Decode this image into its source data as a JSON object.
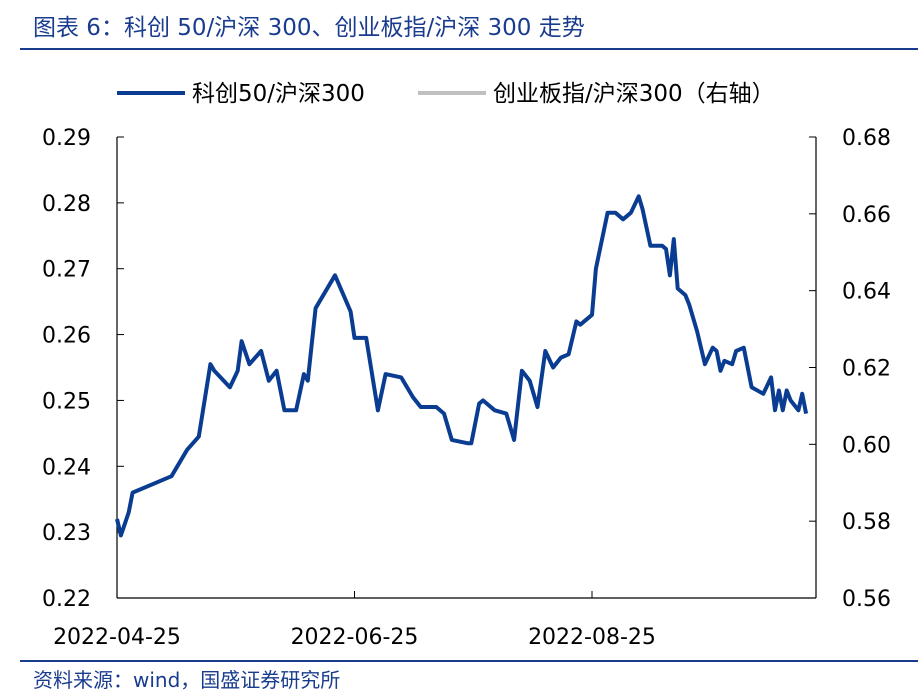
{
  "header": {
    "title": "图表 6：科创 50/沪深 300、创业板指/沪深 300 走势"
  },
  "footer": {
    "source": "资料来源：wind，国盛证券研究所"
  },
  "chart_data": {
    "type": "line",
    "title": "图表 6：科创 50/沪深 300、创业板指/沪深 300 走势",
    "legend_position": "top",
    "grid": false,
    "x_tick_labels": [
      "2022-04-25",
      "2022-06-25",
      "2022-08-25"
    ],
    "x_tick_dates": [
      "2022-04-25",
      "2022-06-25",
      "2022-08-25"
    ],
    "x_range": [
      "2022-04-25",
      "2022-10-21"
    ],
    "y_left": {
      "min": 0.22,
      "max": 0.29,
      "ticks": [
        0.22,
        0.23,
        0.24,
        0.25,
        0.26,
        0.27,
        0.28,
        0.29
      ],
      "labels": [
        "0.22",
        "0.23",
        "0.24",
        "0.25",
        "0.26",
        "0.27",
        "0.28",
        "0.29"
      ]
    },
    "y_right": {
      "min": 0.56,
      "max": 0.68,
      "ticks": [
        0.56,
        0.58,
        0.6,
        0.62,
        0.64,
        0.66,
        0.68
      ],
      "labels": [
        "0.56",
        "0.58",
        "0.60",
        "0.62",
        "0.64",
        "0.66",
        "0.68"
      ]
    },
    "series": [
      {
        "name": "科创50/沪深300",
        "axis": "left",
        "color": "#0a3d91",
        "points": [
          [
            "2022-04-25",
            0.232
          ],
          [
            "2022-04-26",
            0.2295
          ],
          [
            "2022-04-28",
            0.233
          ],
          [
            "2022-04-29",
            0.236
          ],
          [
            "2022-05-05",
            0.2375
          ],
          [
            "2022-05-09",
            0.2385
          ],
          [
            "2022-05-13",
            0.2425
          ],
          [
            "2022-05-16",
            0.2445
          ],
          [
            "2022-05-19",
            0.2555
          ],
          [
            "2022-05-20",
            0.2545
          ],
          [
            "2022-05-24",
            0.252
          ],
          [
            "2022-05-26",
            0.2545
          ],
          [
            "2022-05-27",
            0.259
          ],
          [
            "2022-05-29",
            0.2555
          ],
          [
            "2022-06-01",
            0.2575
          ],
          [
            "2022-06-03",
            0.253
          ],
          [
            "2022-06-05",
            0.2545
          ],
          [
            "2022-06-07",
            0.2485
          ],
          [
            "2022-06-10",
            0.2485
          ],
          [
            "2022-06-12",
            0.254
          ],
          [
            "2022-06-13",
            0.253
          ],
          [
            "2022-06-15",
            0.264
          ],
          [
            "2022-06-20",
            0.269
          ],
          [
            "2022-06-24",
            0.2635
          ],
          [
            "2022-06-25",
            0.2595
          ],
          [
            "2022-06-28",
            0.2595
          ],
          [
            "2022-07-01",
            0.2485
          ],
          [
            "2022-07-03",
            0.254
          ],
          [
            "2022-07-07",
            0.2535
          ],
          [
            "2022-07-10",
            0.2505
          ],
          [
            "2022-07-12",
            0.249
          ],
          [
            "2022-07-16",
            0.249
          ],
          [
            "2022-07-18",
            0.248
          ],
          [
            "2022-07-20",
            0.244
          ],
          [
            "2022-07-24",
            0.2435
          ],
          [
            "2022-07-25",
            0.2435
          ],
          [
            "2022-07-27",
            0.2495
          ],
          [
            "2022-07-28",
            0.25
          ],
          [
            "2022-07-31",
            0.2485
          ],
          [
            "2022-08-03",
            0.248
          ],
          [
            "2022-08-05",
            0.244
          ],
          [
            "2022-08-07",
            0.2545
          ],
          [
            "2022-08-09",
            0.253
          ],
          [
            "2022-08-11",
            0.249
          ],
          [
            "2022-08-13",
            0.2575
          ],
          [
            "2022-08-15",
            0.255
          ],
          [
            "2022-08-17",
            0.2565
          ],
          [
            "2022-08-19",
            0.257
          ],
          [
            "2022-08-21",
            0.262
          ],
          [
            "2022-08-22",
            0.2615
          ],
          [
            "2022-08-25",
            0.263
          ],
          [
            "2022-08-26",
            0.27
          ],
          [
            "2022-08-29",
            0.2785
          ],
          [
            "2022-08-31",
            0.2785
          ],
          [
            "2022-09-02",
            0.2775
          ],
          [
            "2022-09-04",
            0.2785
          ],
          [
            "2022-09-06",
            0.281
          ],
          [
            "2022-09-07",
            0.279
          ],
          [
            "2022-09-09",
            0.2735
          ],
          [
            "2022-09-12",
            0.2735
          ],
          [
            "2022-09-13",
            0.273
          ],
          [
            "2022-09-14",
            0.269
          ],
          [
            "2022-09-15",
            0.2745
          ],
          [
            "2022-09-16",
            0.267
          ],
          [
            "2022-09-18",
            0.266
          ],
          [
            "2022-09-19",
            0.2645
          ],
          [
            "2022-09-21",
            0.2605
          ],
          [
            "2022-09-23",
            0.2555
          ],
          [
            "2022-09-25",
            0.258
          ],
          [
            "2022-09-26",
            0.2575
          ],
          [
            "2022-09-27",
            0.2545
          ],
          [
            "2022-09-28",
            0.256
          ],
          [
            "2022-09-30",
            0.2555
          ],
          [
            "2022-10-01",
            0.2575
          ],
          [
            "2022-10-03",
            0.258
          ],
          [
            "2022-10-05",
            0.252
          ],
          [
            "2022-10-08",
            0.251
          ],
          [
            "2022-10-10",
            0.2535
          ],
          [
            "2022-10-11",
            0.2485
          ],
          [
            "2022-10-12",
            0.2515
          ],
          [
            "2022-10-13",
            0.2485
          ],
          [
            "2022-10-14",
            0.2515
          ],
          [
            "2022-10-15",
            0.25
          ],
          [
            "2022-10-17",
            0.2485
          ],
          [
            "2022-10-18",
            0.251
          ],
          [
            "2022-10-19",
            0.248
          ]
        ]
      },
      {
        "name": "创业板指/沪深300（右轴）",
        "axis": "right",
        "color": "#c0c0c0",
        "points": []
      }
    ]
  }
}
